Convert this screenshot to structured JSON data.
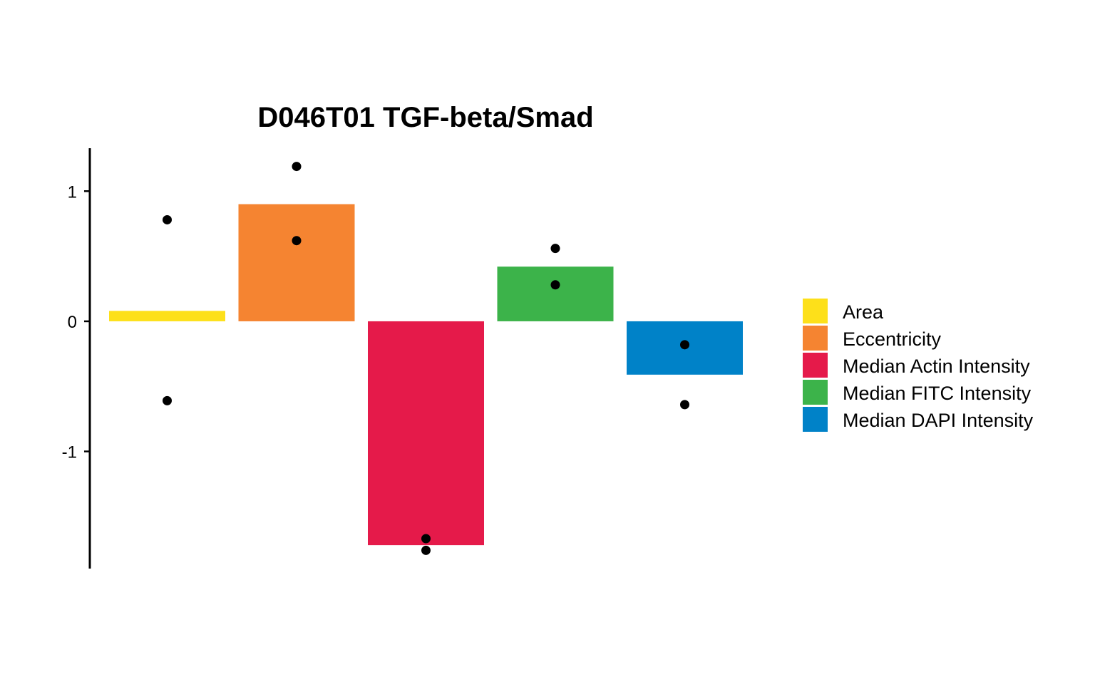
{
  "chart_data": {
    "type": "bar",
    "title": "D046T01 TGF-beta/Smad",
    "xlabel": "",
    "ylabel": "",
    "ylim": [
      -1.9,
      1.33
    ],
    "yticks": [
      1,
      0,
      -1
    ],
    "categories": [
      "Area",
      "Eccentricity",
      "Median Actin Intensity",
      "Median FITC Intensity",
      "Median DAPI Intensity"
    ],
    "values": [
      0.08,
      0.9,
      -1.72,
      0.42,
      -0.41
    ],
    "colors": [
      "#FDE01A",
      "#F58431",
      "#E51A4A",
      "#3CB34A",
      "#0082C8"
    ],
    "points": [
      [
        0.78,
        -0.61
      ],
      [
        1.19,
        0.62
      ],
      [
        -1.67,
        -1.76
      ],
      [
        0.56,
        0.28
      ],
      [
        -0.18,
        -0.64
      ]
    ],
    "legend": {
      "position": "right",
      "entries": [
        "Area",
        "Eccentricity",
        "Median Actin Intensity",
        "Median FITC Intensity",
        "Median DAPI Intensity"
      ]
    },
    "grid": false
  }
}
